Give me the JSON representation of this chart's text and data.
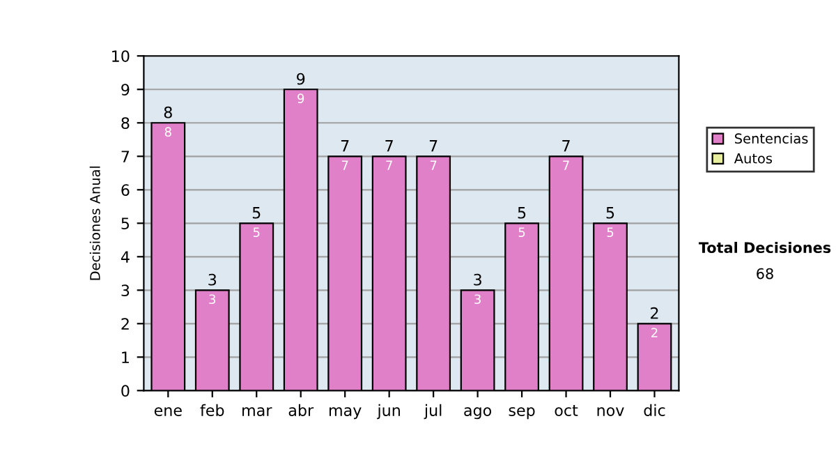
{
  "chart_data": {
    "type": "bar",
    "stacked": true,
    "ylabel": "Decisiones Anual",
    "categories": [
      "ene",
      "feb",
      "mar",
      "abr",
      "may",
      "jun",
      "jul",
      "ago",
      "sep",
      "oct",
      "nov",
      "dic"
    ],
    "series": [
      {
        "name": "Sentencias",
        "color": "#e080c8",
        "values": [
          8,
          3,
          5,
          9,
          7,
          7,
          7,
          3,
          5,
          7,
          5,
          2
        ],
        "value_labels": [
          "8",
          "3",
          "5",
          "9",
          "7",
          "7",
          "7",
          "3",
          "5",
          "7",
          "5",
          "2"
        ]
      },
      {
        "name": "Autos",
        "color": "#e8f0a0",
        "values": [
          null,
          null,
          null,
          null,
          null,
          null,
          null,
          null,
          null,
          null,
          null,
          null
        ]
      }
    ],
    "totals": [
      "8",
      "3",
      "5",
      "9",
      "7",
      "7",
      "7",
      "3",
      "5",
      "7",
      "5",
      "2"
    ],
    "ylim": [
      0,
      10
    ],
    "yticks": [
      0,
      1,
      2,
      3,
      4,
      5,
      6,
      7,
      8,
      9,
      10
    ],
    "grid": "y",
    "legend": "right",
    "annotations": [
      "Total Decisiones",
      "68"
    ]
  }
}
